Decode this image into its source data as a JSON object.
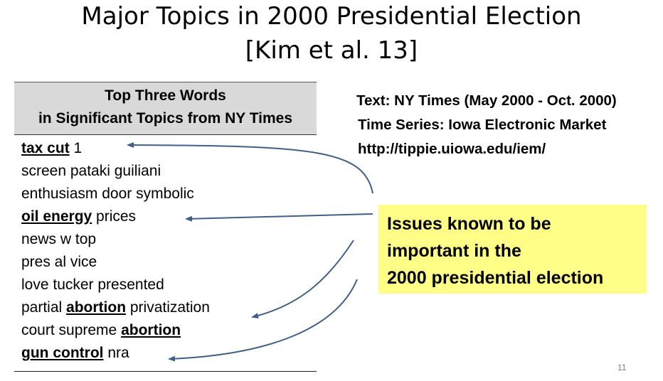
{
  "slide": {
    "title_line1": "Major Topics in 2000 Presidential Election",
    "title_line2": "[Kim et al. 13]",
    "page_number": "11"
  },
  "table": {
    "header_line1": "Top Three Words",
    "header_line2": "in Significant Topics from NY Times",
    "rows": [
      {
        "kw": "tax cut",
        "rest": " 1"
      },
      {
        "text": "screen pataki guiliani"
      },
      {
        "text": "enthusiasm door symbolic"
      },
      {
        "kw": "oil energy",
        "rest": " prices"
      },
      {
        "text": "news w top"
      },
      {
        "text": "pres al vice"
      },
      {
        "text": "love tucker presented"
      },
      {
        "pre": "partial ",
        "kw": "abortion",
        "rest": " privatization"
      },
      {
        "pre": "court supreme ",
        "kw": "abortion"
      },
      {
        "kw": "gun control",
        "rest": " nra"
      }
    ]
  },
  "source": {
    "text_line": "Text: NY Times (May 2000 - Oct. 2000)",
    "series_line": "Time Series: Iowa Electronic Market",
    "url_line": "http://tippie.uiowa.edu/iem/"
  },
  "callout": {
    "line1": "Issues known to be",
    "line2": "important in the",
    "line3": "2000 presidential election",
    "color": "#ffff88"
  },
  "colors": {
    "arrow": "#3f5f8a",
    "header_bg": "#d9d9d9"
  }
}
